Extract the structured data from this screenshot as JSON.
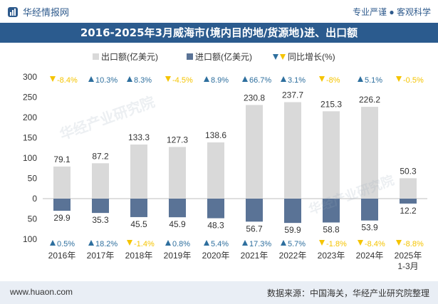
{
  "header": {
    "brand": "华经情报网",
    "tagline": "专业严谨 ● 客观科学"
  },
  "title": "2016-2025年3月威海市(境内目的地/货源地)进、出口额",
  "legend": {
    "export": "出口额(亿美元)",
    "import": "进口额(亿美元)",
    "yoy": "同比增长(%)"
  },
  "watermarks": [
    "华经产业研究院",
    "www.huaon.com"
  ],
  "footer": {
    "left": "www.huaon.com",
    "right": "数据来源：中国海关，华经产业研究院整理"
  },
  "colors": {
    "export_bar": "#d9d9d9",
    "import_bar": "#5a7396",
    "up": "#2e6f9e",
    "down": "#f5c400",
    "title_bg": "#2b5b8e"
  },
  "chart_data": {
    "type": "bar",
    "categories": [
      "2016年",
      "2017年",
      "2018年",
      "2019年",
      "2020年",
      "2021年",
      "2022年",
      "2023年",
      "2024年",
      "2025年\n1-3月"
    ],
    "series": [
      {
        "name": "出口额(亿美元)",
        "values": [
          79.1,
          87.2,
          133.3,
          127.3,
          138.6,
          230.8,
          237.7,
          215.3,
          226.2,
          50.3
        ]
      },
      {
        "name": "进口额(亿美元)",
        "values": [
          29.9,
          35.3,
          45.5,
          45.9,
          48.3,
          56.7,
          59.9,
          58.8,
          53.9,
          12.2
        ]
      }
    ],
    "export_growth": [
      "-8.4%",
      "10.3%",
      "8.3%",
      "-4.5%",
      "8.9%",
      "66.7%",
      "3.1%",
      "-8%",
      "5.1%",
      "-0.5%"
    ],
    "import_growth": [
      "0.5%",
      "18.2%",
      "-1.4%",
      "0.8%",
      "5.4%",
      "17.3%",
      "5.7%",
      "-1.8%",
      "-8.4%",
      "-8.8%"
    ],
    "yticks_top": [
      "300",
      "250",
      "200",
      "150",
      "100",
      "50",
      "0"
    ],
    "yticks_bottom": [
      "50",
      "100"
    ],
    "ylim_export": [
      0,
      300
    ],
    "ylim_import": [
      0,
      100
    ],
    "grid": false
  }
}
